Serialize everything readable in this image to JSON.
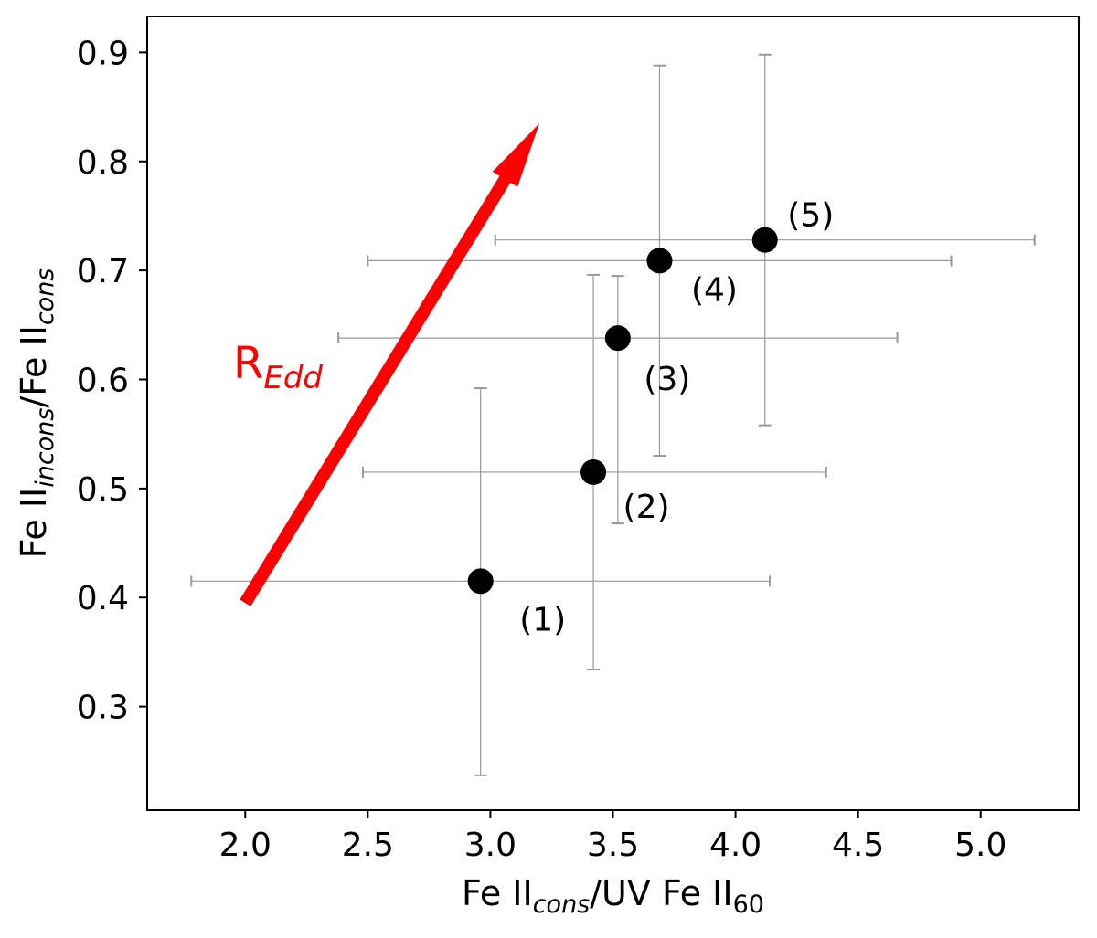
{
  "chart_data": {
    "type": "scatter",
    "title": "",
    "xlabel": {
      "parts": [
        {
          "text": "Fe II",
          "style": "normal"
        },
        {
          "text": "cons",
          "style": "sub-italic"
        },
        {
          "text": "/UV Fe II",
          "style": "normal"
        },
        {
          "text": "60",
          "style": "sub"
        }
      ]
    },
    "ylabel": {
      "parts": [
        {
          "text": "Fe II",
          "style": "normal"
        },
        {
          "text": "incons",
          "style": "sub-italic"
        },
        {
          "text": "/Fe II",
          "style": "normal"
        },
        {
          "text": "cons",
          "style": "sub-italic"
        }
      ]
    },
    "xlim": [
      1.6,
      5.4
    ],
    "ylim": [
      0.205,
      0.933
    ],
    "xticks": [
      2.0,
      2.5,
      3.0,
      3.5,
      4.0,
      4.5,
      5.0
    ],
    "xtick_labels": [
      "2.0",
      "2.5",
      "3.0",
      "3.5",
      "4.0",
      "4.5",
      "5.0"
    ],
    "yticks": [
      0.3,
      0.4,
      0.5,
      0.6,
      0.7,
      0.8,
      0.9
    ],
    "ytick_labels": [
      "0.3",
      "0.4",
      "0.5",
      "0.6",
      "0.7",
      "0.8",
      "0.9"
    ],
    "grid": false,
    "points": [
      {
        "label": "(1)",
        "x": 2.96,
        "y": 0.415,
        "xerr": [
          1.18,
          1.18
        ],
        "yerr": [
          0.178,
          0.177
        ]
      },
      {
        "label": "(2)",
        "x": 3.42,
        "y": 0.515,
        "xerr": [
          0.94,
          0.95
        ],
        "yerr": [
          0.181,
          0.181
        ]
      },
      {
        "label": "(3)",
        "x": 3.52,
        "y": 0.638,
        "xerr": [
          1.14,
          1.14
        ],
        "yerr": [
          0.17,
          0.057
        ]
      },
      {
        "label": "(4)",
        "x": 3.69,
        "y": 0.709,
        "xerr": [
          1.19,
          1.19
        ],
        "yerr": [
          0.179,
          0.179
        ]
      },
      {
        "label": "(5)",
        "x": 4.12,
        "y": 0.728,
        "xerr": [
          1.1,
          1.1
        ],
        "yerr": [
          0.17,
          0.17
        ]
      }
    ],
    "point_color": "#000000",
    "errorbar_color": "#999999",
    "annotation": {
      "parts": [
        {
          "text": "R",
          "style": "normal"
        },
        {
          "text": "Edd",
          "style": "sub-italic"
        }
      ],
      "color": "#ff0000",
      "arrow_from": [
        2.0,
        0.395
      ],
      "arrow_to": [
        3.2,
        0.835
      ]
    }
  }
}
